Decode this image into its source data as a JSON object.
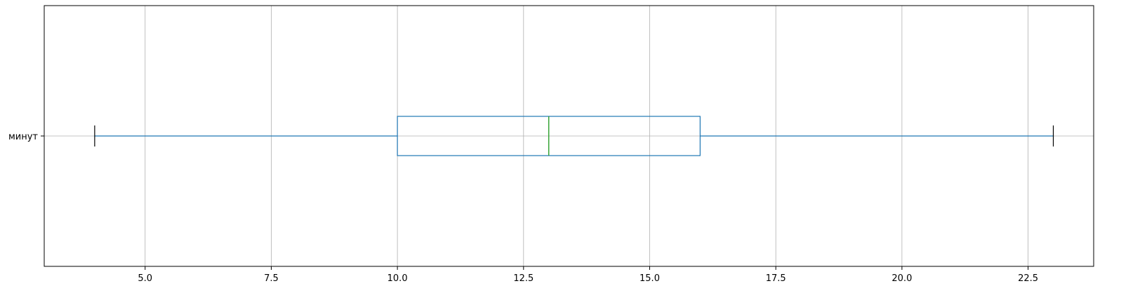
{
  "chart_data": {
    "type": "boxplot",
    "orientation": "horizontal",
    "title": "",
    "xlabel": "",
    "ylabel": "",
    "xlim": [
      3.0,
      23.8
    ],
    "x_ticks": [
      5.0,
      7.5,
      10.0,
      12.5,
      15.0,
      17.5,
      20.0,
      22.5
    ],
    "x_tick_labels": [
      "5.0",
      "7.5",
      "10.0",
      "12.5",
      "15.0",
      "17.5",
      "20.0",
      "22.5"
    ],
    "grid": true,
    "categories": [
      "минут"
    ],
    "boxes": [
      {
        "category": "минут",
        "whisker_low": 4,
        "q1": 10,
        "median": 13,
        "q3": 16,
        "whisker_high": 23
      }
    ],
    "colors": {
      "box": "#1f77b4",
      "whisker": "#1f77b4",
      "median": "#2ca02c",
      "cap": "#000000",
      "grid": "#b0b0b0"
    }
  }
}
